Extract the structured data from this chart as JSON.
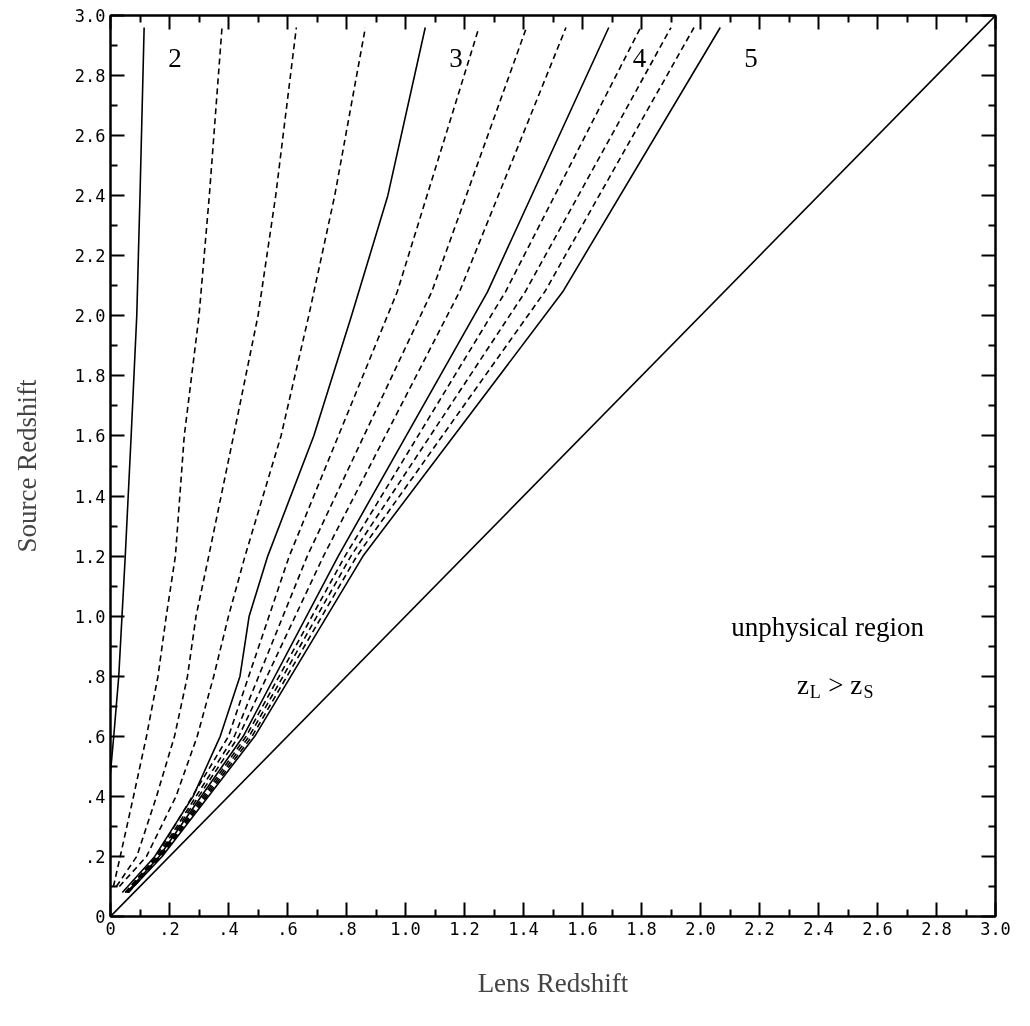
{
  "chart_data": {
    "type": "line",
    "xlabel": "Lens Redshift",
    "ylabel": "Source Redshift",
    "xlim": [
      0,
      3.0
    ],
    "ylim": [
      0,
      3.0
    ],
    "xticks": [
      0,
      {
        "value": 0.1,
        "label": null
      },
      {
        "value": 0.2,
        "label": ".2"
      },
      {
        "value": 0.3,
        "label": null
      },
      {
        "value": 0.4,
        "label": ".4"
      },
      {
        "value": 0.5,
        "label": null
      },
      {
        "value": 0.6,
        "label": ".6"
      },
      {
        "value": 0.7,
        "label": null
      },
      {
        "value": 0.8,
        "label": ".8"
      },
      {
        "value": 0.9,
        "label": null
      },
      {
        "value": 1.0,
        "label": "1.0"
      },
      {
        "value": 1.1,
        "label": null
      },
      {
        "value": 1.2,
        "label": "1.2"
      },
      {
        "value": 1.3,
        "label": null
      },
      {
        "value": 1.4,
        "label": "1.4"
      },
      {
        "value": 1.5,
        "label": null
      },
      {
        "value": 1.6,
        "label": "1.6"
      },
      {
        "value": 1.7,
        "label": null
      },
      {
        "value": 1.8,
        "label": "1.8"
      },
      {
        "value": 1.9,
        "label": null
      },
      {
        "value": 2.0,
        "label": "2.0"
      },
      {
        "value": 2.1,
        "label": null
      },
      {
        "value": 2.2,
        "label": "2.2"
      },
      {
        "value": 2.3,
        "label": null
      },
      {
        "value": 2.4,
        "label": "2.4"
      },
      {
        "value": 2.5,
        "label": null
      },
      {
        "value": 2.6,
        "label": "2.6"
      },
      {
        "value": 2.7,
        "label": null
      },
      {
        "value": 2.8,
        "label": "2.8"
      },
      {
        "value": 2.9,
        "label": null
      },
      {
        "value": 3.0,
        "label": "3.0"
      }
    ],
    "yticks": [
      0,
      {
        "value": 0.1,
        "label": null
      },
      {
        "value": 0.2,
        "label": ".2"
      },
      {
        "value": 0.3,
        "label": null
      },
      {
        "value": 0.4,
        "label": ".4"
      },
      {
        "value": 0.5,
        "label": null
      },
      {
        "value": 0.6,
        "label": ".6"
      },
      {
        "value": 0.7,
        "label": null
      },
      {
        "value": 0.8,
        "label": ".8"
      },
      {
        "value": 0.9,
        "label": null
      },
      {
        "value": 1.0,
        "label": "1.0"
      },
      {
        "value": 1.1,
        "label": null
      },
      {
        "value": 1.2,
        "label": "1.2"
      },
      {
        "value": 1.3,
        "label": null
      },
      {
        "value": 1.4,
        "label": "1.4"
      },
      {
        "value": 1.5,
        "label": null
      },
      {
        "value": 1.6,
        "label": "1.6"
      },
      {
        "value": 1.7,
        "label": null
      },
      {
        "value": 1.8,
        "label": "1.8"
      },
      {
        "value": 1.9,
        "label": null
      },
      {
        "value": 2.0,
        "label": "2.0"
      },
      {
        "value": 2.1,
        "label": null
      },
      {
        "value": 2.2,
        "label": "2.2"
      },
      {
        "value": 2.3,
        "label": null
      },
      {
        "value": 2.4,
        "label": "2.4"
      },
      {
        "value": 2.5,
        "label": null
      },
      {
        "value": 2.6,
        "label": "2.6"
      },
      {
        "value": 2.7,
        "label": null
      },
      {
        "value": 2.8,
        "label": "2.8"
      },
      {
        "value": 2.9,
        "label": null
      },
      {
        "value": 3.0,
        "label": "3.0"
      }
    ],
    "grid": false,
    "legend": "top",
    "marker": "none",
    "series": [
      {
        "name": "2",
        "color": "#000000",
        "line_style": "solid",
        "x": [
          0.0,
          0.011,
          0.028,
          0.039,
          0.05,
          0.07,
          0.089,
          0.1,
          0.114
        ],
        "values": [
          0.48,
          0.6,
          0.8,
          1.0,
          1.2,
          1.6,
          2.0,
          2.4,
          2.96
        ]
      },
      {
        "color": "#000000",
        "line_style": "dashed",
        "x": [
          0.01,
          0.033,
          0.078,
          0.122,
          0.161,
          0.189,
          0.22,
          0.25,
          0.3,
          0.335,
          0.378
        ],
        "values": [
          0.1,
          0.2,
          0.4,
          0.6,
          0.8,
          1.0,
          1.2,
          1.6,
          2.0,
          2.4,
          2.96
        ]
      },
      {
        "color": "#000000",
        "line_style": "dashed",
        "x": [
          0.02,
          0.089,
          0.156,
          0.217,
          0.261,
          0.29,
          0.333,
          0.417,
          0.5,
          0.56,
          0.63
        ],
        "values": [
          0.1,
          0.2,
          0.4,
          0.6,
          0.8,
          1.0,
          1.2,
          1.6,
          2.0,
          2.4,
          2.96
        ]
      },
      {
        "color": "#000000",
        "line_style": "dashed",
        "x": [
          0.03,
          0.122,
          0.222,
          0.294,
          0.35,
          0.4,
          0.456,
          0.578,
          0.672,
          0.76,
          0.864
        ],
        "values": [
          0.1,
          0.2,
          0.4,
          0.6,
          0.8,
          1.0,
          1.2,
          1.6,
          2.0,
          2.4,
          2.96
        ]
      },
      {
        "name": "3",
        "color": "#000000",
        "line_style": "solid",
        "x": [
          0.04,
          0.15,
          0.28,
          0.372,
          0.439,
          0.47,
          0.533,
          0.689,
          0.817,
          0.94,
          1.067
        ],
        "values": [
          0.08,
          0.2,
          0.4,
          0.6,
          0.8,
          1.0,
          1.2,
          1.6,
          2.0,
          2.4,
          2.96
        ]
      },
      {
        "color": "#000000",
        "line_style": "dashed",
        "x": [
          0.05,
          0.155,
          0.4,
          0.606,
          0.972,
          1.249
        ],
        "values": [
          0.08,
          0.2,
          0.6,
          1.2,
          2.08,
          2.96
        ]
      },
      {
        "color": "#000000",
        "line_style": "dashed",
        "x": [
          0.05,
          0.16,
          0.42,
          0.667,
          1.089,
          1.41
        ],
        "values": [
          0.08,
          0.2,
          0.6,
          1.2,
          2.08,
          2.96
        ]
      },
      {
        "color": "#000000",
        "line_style": "dashed",
        "x": [
          0.055,
          0.163,
          0.435,
          0.722,
          1.183,
          1.544
        ],
        "values": [
          0.08,
          0.2,
          0.6,
          1.2,
          2.08,
          2.96
        ]
      },
      {
        "name": "4",
        "color": "#000000",
        "line_style": "solid",
        "x": [
          0.055,
          0.165,
          0.45,
          0.772,
          1.278,
          1.689
        ],
        "values": [
          0.08,
          0.2,
          0.6,
          1.2,
          2.08,
          2.96
        ]
      },
      {
        "color": "#000000",
        "line_style": "dashed",
        "x": [
          0.06,
          0.168,
          0.46,
          0.795,
          1.339,
          1.797
        ],
        "values": [
          0.08,
          0.2,
          0.6,
          1.2,
          2.08,
          2.96
        ]
      },
      {
        "color": "#000000",
        "line_style": "dashed",
        "x": [
          0.06,
          0.17,
          0.47,
          0.815,
          1.406,
          1.9
        ],
        "values": [
          0.08,
          0.2,
          0.6,
          1.2,
          2.08,
          2.96
        ]
      },
      {
        "color": "#000000",
        "line_style": "dashed",
        "x": [
          0.06,
          0.172,
          0.48,
          0.835,
          1.472,
          1.978
        ],
        "values": [
          0.08,
          0.2,
          0.6,
          1.2,
          2.08,
          2.96
        ]
      },
      {
        "name": "5",
        "color": "#000000",
        "line_style": "solid",
        "x": [
          0.06,
          0.175,
          0.489,
          0.856,
          1.533,
          2.067
        ],
        "values": [
          0.08,
          0.2,
          0.6,
          1.2,
          2.08,
          2.96
        ]
      },
      {
        "color": "#000000",
        "line_style": "solid",
        "x": [
          0,
          3.0
        ],
        "values": [
          0,
          3.0
        ]
      }
    ],
    "annotations": [
      "unphysical region",
      "z$_{L}$ > z$_{S}$"
    ]
  }
}
